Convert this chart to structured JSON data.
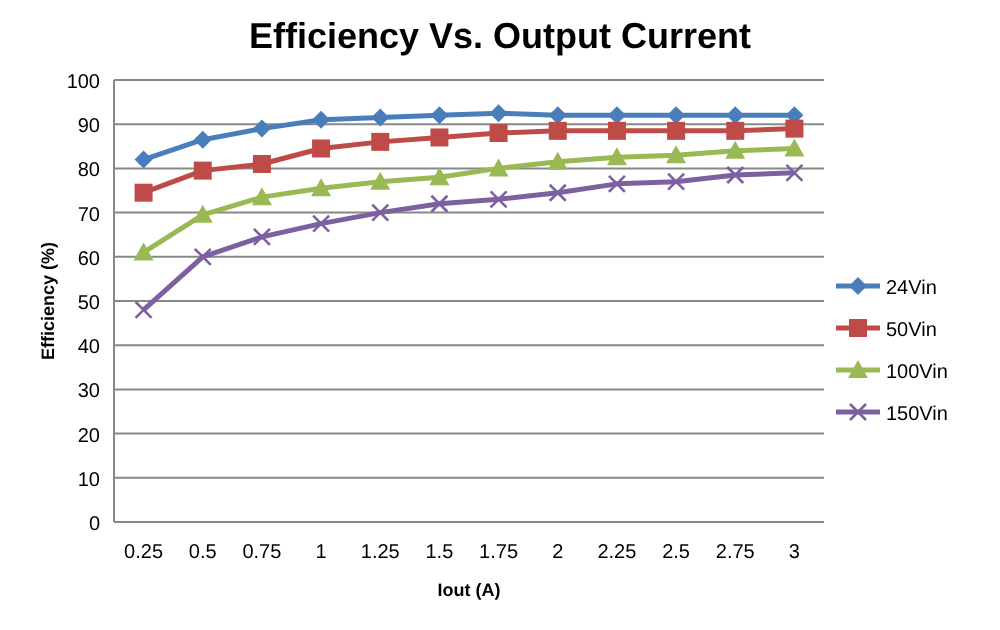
{
  "chart_data": {
    "type": "line",
    "title": "Efficiency Vs. Output Current",
    "xlabel": "Iout (A)",
    "ylabel": "Efficiency (%)",
    "categories": [
      "0.25",
      "0.5",
      "0.75",
      "1",
      "1.25",
      "1.5",
      "1.75",
      "2",
      "2.25",
      "2.5",
      "2.75",
      "3"
    ],
    "series": [
      {
        "name": "24Vin",
        "color": "#4a7ebb",
        "marker": "diamond",
        "values": [
          82,
          86.5,
          89,
          91,
          91.5,
          92,
          92.5,
          92,
          92,
          92,
          92,
          92
        ]
      },
      {
        "name": "50Vin",
        "color": "#be4b48",
        "marker": "square",
        "values": [
          74.5,
          79.5,
          81,
          84.5,
          86,
          87,
          88,
          88.5,
          88.5,
          88.5,
          88.5,
          89
        ]
      },
      {
        "name": "100Vin",
        "color": "#98b954",
        "marker": "triangle",
        "values": [
          61,
          69.5,
          73.5,
          75.5,
          77,
          78,
          80,
          81.5,
          82.5,
          83,
          84,
          84.5
        ]
      },
      {
        "name": "150Vin",
        "color": "#7d60a0",
        "marker": "cross",
        "values": [
          48,
          60,
          64.5,
          67.5,
          70,
          72,
          73,
          74.5,
          76.5,
          77,
          78.5,
          79
        ]
      }
    ],
    "ylim": [
      0,
      100
    ],
    "yticks": [
      0,
      10,
      20,
      30,
      40,
      50,
      60,
      70,
      80,
      90,
      100
    ],
    "grid": "y",
    "legend": "right"
  }
}
